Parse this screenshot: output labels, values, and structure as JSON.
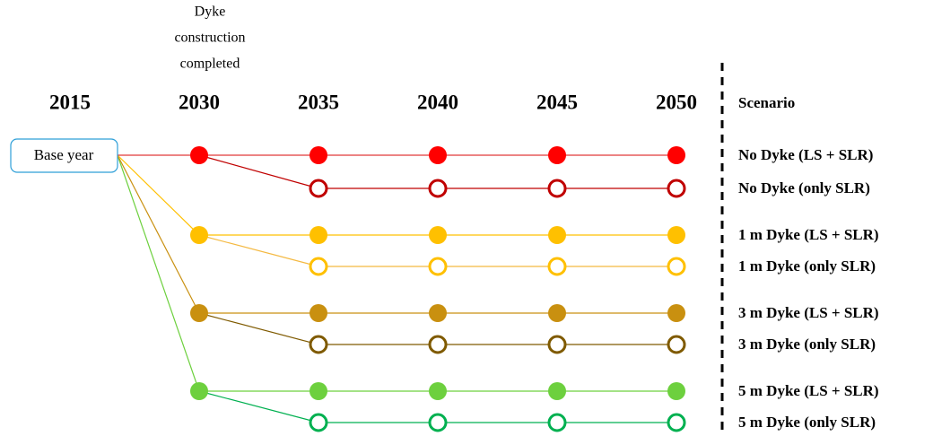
{
  "timeline": {
    "years": [
      "2015",
      "2030",
      "2035",
      "2040",
      "2045",
      "2050"
    ],
    "annotation": [
      "Dyke",
      "construction",
      "completed"
    ],
    "base_label": "Base year",
    "scenario_header": "Scenario",
    "scenarios": [
      {
        "name": "No Dyke (LS + SLR)",
        "marker": "filled",
        "color": "#ff0000",
        "line": "#e03a3a"
      },
      {
        "name": "No Dyke (only SLR)",
        "marker": "hollow",
        "color": "#c00000",
        "line": "#c00000"
      },
      {
        "name": "1 m Dyke (LS + SLR)",
        "marker": "filled",
        "color": "#ffc000",
        "line": "#ffc000"
      },
      {
        "name": "1 m Dyke (only SLR)",
        "marker": "hollow",
        "color": "#ffc000",
        "line": "#f4b942"
      },
      {
        "name": "3 m Dyke (LS + SLR)",
        "marker": "filled",
        "color": "#c99010",
        "line": "#c99010"
      },
      {
        "name": "3 m Dyke (only SLR)",
        "marker": "hollow",
        "color": "#7f5a00",
        "line": "#7f5a00"
      },
      {
        "name": "5 m Dyke (LS + SLR)",
        "marker": "filled",
        "color": "#6dd03e",
        "line": "#6dd03e"
      },
      {
        "name": "5 m Dyke (only SLR)",
        "marker": "hollow",
        "color": "#00b050",
        "line": "#00b050"
      }
    ]
  }
}
